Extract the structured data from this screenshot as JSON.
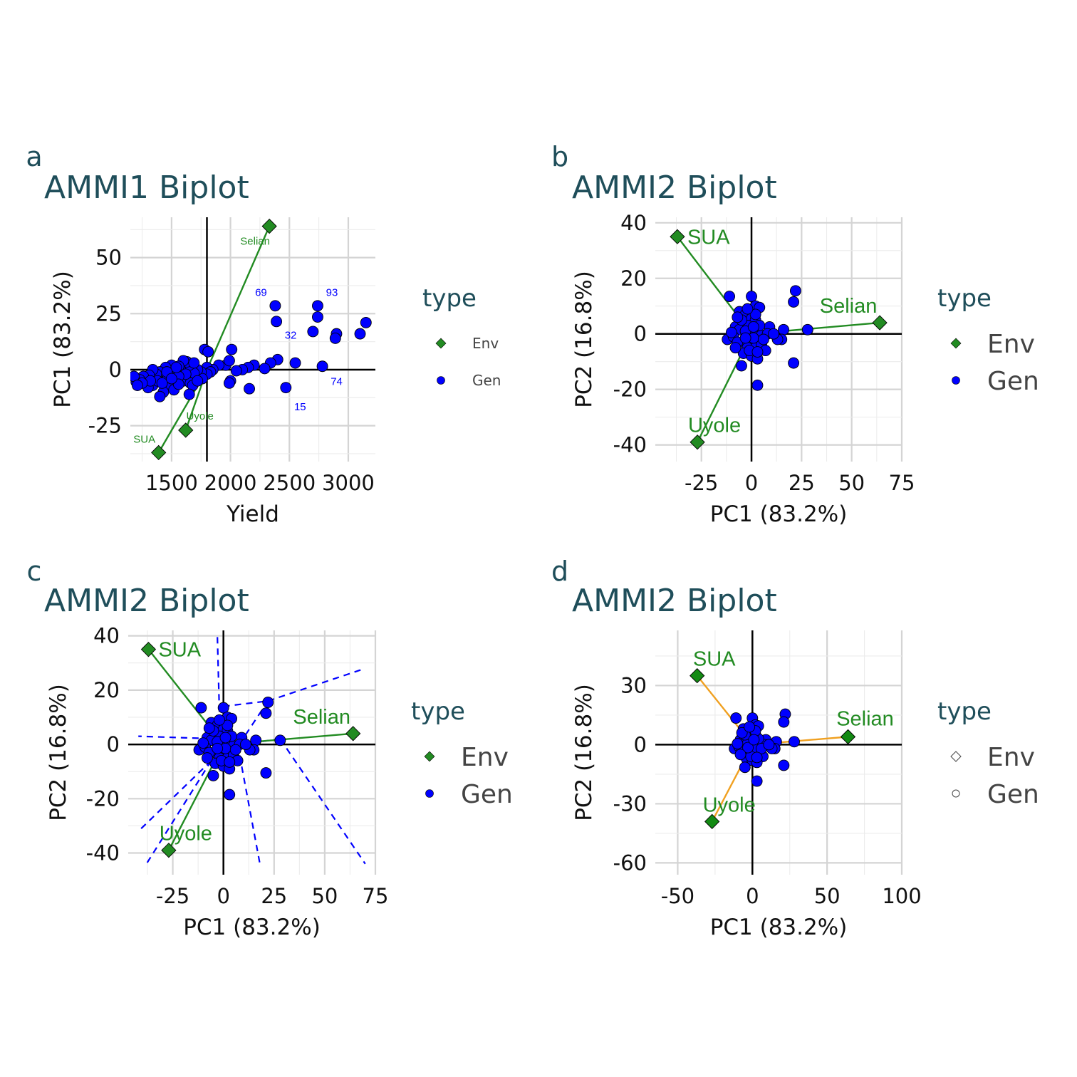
{
  "figure": {
    "title_color": "#1f4e5a",
    "env_color": "#228b22",
    "gen_color": "#0000ff",
    "orange": "#f0a020"
  },
  "chart_data": [
    {
      "panel": "a",
      "type": "scatter",
      "title": "AMMI1 Biplot",
      "xlabel": "Yield",
      "ylabel": "PC1 (83.2%)",
      "xlim": [
        1150,
        3230
      ],
      "ylim": [
        -41,
        68
      ],
      "xticks": [
        1500,
        2000,
        2500,
        3000
      ],
      "yticks": [
        -25,
        0,
        25,
        50
      ],
      "grid": true,
      "legend": {
        "title": "type",
        "position": "right",
        "items": [
          "Env",
          "Gen"
        ],
        "style": "filled"
      },
      "ref_x": 1800,
      "ref_y": 0,
      "env": [
        {
          "label": "Selian",
          "x": 2330,
          "y": 64
        },
        {
          "label": "Uyole",
          "x": 1620,
          "y": -27
        },
        {
          "label": "SUA",
          "x": 1390,
          "y": -37
        }
      ],
      "env_line_color": "green",
      "labeled_genotypes": [
        {
          "label": "69",
          "x": 2380,
          "y": 28.5
        },
        {
          "label": "93",
          "x": 2740,
          "y": 28.5
        },
        {
          "label": "32",
          "x": 2390,
          "y": 21.5
        },
        {
          "label": "74",
          "x": 2780,
          "y": 1.5
        },
        {
          "label": "15",
          "x": 2470,
          "y": -8
        }
      ],
      "genotypes": [
        [
          2740,
          23.5
        ],
        [
          2700,
          17
        ],
        [
          2900,
          16
        ],
        [
          2890,
          14
        ],
        [
          3100,
          16
        ],
        [
          3150,
          21
        ],
        [
          2550,
          3
        ],
        [
          2400,
          4.5
        ],
        [
          2340,
          3
        ],
        [
          2290,
          0.5
        ],
        [
          2200,
          2
        ],
        [
          2150,
          1
        ],
        [
          2100,
          0
        ],
        [
          2160,
          -8.5
        ],
        [
          2010,
          9
        ],
        [
          2050,
          -0.5
        ],
        [
          1960,
          2
        ],
        [
          1990,
          4
        ],
        [
          2000,
          -5
        ],
        [
          1990,
          -6
        ],
        [
          1900,
          2
        ],
        [
          1850,
          0
        ],
        [
          1800,
          1
        ],
        [
          1830,
          -1
        ],
        [
          1800,
          -2
        ],
        [
          1780,
          9
        ],
        [
          1810,
          8
        ],
        [
          1750,
          -1
        ],
        [
          1760,
          -4
        ],
        [
          1720,
          0
        ],
        [
          1690,
          -1.5
        ],
        [
          1650,
          2
        ],
        [
          1630,
          3.5
        ],
        [
          1600,
          4
        ],
        [
          1580,
          -0.5
        ],
        [
          1560,
          1.5
        ],
        [
          1530,
          -1
        ],
        [
          1500,
          2
        ],
        [
          1470,
          -0.5
        ],
        [
          1450,
          1
        ],
        [
          1420,
          -3
        ],
        [
          1400,
          -1
        ],
        [
          1370,
          -2
        ],
        [
          1340,
          0
        ],
        [
          1310,
          -2.5
        ],
        [
          1290,
          -5
        ],
        [
          1260,
          -3
        ],
        [
          1230,
          -4.5
        ],
        [
          1200,
          -5.5
        ],
        [
          1180,
          -3
        ],
        [
          1570,
          -4
        ],
        [
          1520,
          -6
        ],
        [
          1480,
          -7
        ],
        [
          1430,
          -10
        ],
        [
          1400,
          -12
        ],
        [
          1520,
          -9
        ],
        [
          1600,
          -5
        ],
        [
          1660,
          -6
        ],
        [
          1680,
          -7
        ],
        [
          1650,
          -11
        ],
        [
          1620,
          -2
        ],
        [
          1560,
          -3
        ],
        [
          1340,
          -7
        ],
        [
          1300,
          -8
        ],
        [
          1470,
          -3.5
        ],
        [
          1540,
          1
        ],
        [
          1690,
          3
        ],
        [
          1720,
          -5
        ],
        [
          1560,
          -6.5
        ],
        [
          1460,
          -1
        ],
        [
          1380,
          -5
        ],
        [
          1320,
          -5
        ],
        [
          1250,
          -6
        ],
        [
          1210,
          -7
        ],
        [
          1420,
          -6
        ],
        [
          1500,
          -4
        ]
      ]
    },
    {
      "panel": "b",
      "type": "scatter",
      "title": "AMMI2 Biplot",
      "xlabel": "PC1 (83.2%)",
      "ylabel": "PC2 (16.8%)",
      "xlim": [
        -48,
        75
      ],
      "ylim": [
        -46,
        42
      ],
      "xticks": [
        -25,
        0,
        25,
        50,
        75
      ],
      "yticks": [
        -40,
        -20,
        0,
        20,
        40
      ],
      "grid": true,
      "legend": {
        "title": "type",
        "position": "right",
        "items": [
          "Env",
          "Gen"
        ],
        "style": "filled"
      },
      "env": [
        {
          "label": "SUA",
          "x": -37,
          "y": 35
        },
        {
          "label": "Selian",
          "x": 64,
          "y": 4
        },
        {
          "label": "Uyole",
          "x": -27,
          "y": -39
        }
      ],
      "env_line_color": "green",
      "genotypes": [
        [
          -11,
          13.5
        ],
        [
          0,
          13.5
        ],
        [
          22,
          15.5
        ],
        [
          21,
          11.5
        ],
        [
          2,
          10
        ],
        [
          4,
          9.5
        ],
        [
          -6,
          8
        ],
        [
          -3,
          7
        ],
        [
          0,
          5.5
        ],
        [
          2,
          5
        ],
        [
          -2,
          3
        ],
        [
          -8,
          2.5
        ],
        [
          9,
          2.5
        ],
        [
          -6,
          1.5
        ],
        [
          -1,
          0.5
        ],
        [
          3,
          1
        ],
        [
          5,
          -0.5
        ],
        [
          8,
          0
        ],
        [
          -12,
          -2
        ],
        [
          16,
          1.5
        ],
        [
          15,
          -2
        ],
        [
          13,
          -2
        ],
        [
          28,
          1.5
        ],
        [
          -4,
          -3
        ],
        [
          1,
          -3
        ],
        [
          -2,
          -5
        ],
        [
          2,
          -5
        ],
        [
          5,
          -4
        ],
        [
          7,
          -6
        ],
        [
          -4,
          -7
        ],
        [
          0,
          -8
        ],
        [
          3,
          -9
        ],
        [
          -5,
          -11.5
        ],
        [
          21,
          -10.5
        ],
        [
          3,
          -18.5
        ],
        [
          -9,
          -1
        ],
        [
          -7,
          -3
        ],
        [
          -3,
          1
        ],
        [
          1,
          -1.5
        ],
        [
          4,
          3
        ],
        [
          -1,
          -6
        ],
        [
          6,
          -2
        ],
        [
          -10,
          0.5
        ],
        [
          -5,
          5
        ],
        [
          2,
          7
        ],
        [
          -3,
          -1.5
        ],
        [
          3,
          -6.5
        ],
        [
          -7,
          6
        ],
        [
          1,
          2.5
        ],
        [
          -2,
          9
        ],
        [
          11,
          0
        ],
        [
          -8,
          -5
        ]
      ]
    },
    {
      "panel": "c",
      "type": "scatter",
      "title": "AMMI2 Biplot",
      "xlabel": "PC1 (83.2%)",
      "ylabel": "PC2 (16.8%)",
      "xlim": [
        -47,
        75
      ],
      "ylim": [
        -48,
        42
      ],
      "xticks": [
        -25,
        0,
        25,
        50,
        75
      ],
      "yticks": [
        -40,
        -20,
        0,
        20,
        40
      ],
      "grid": true,
      "legend": {
        "title": "type",
        "position": "right",
        "items": [
          "Env",
          "Gen"
        ],
        "style": "filled"
      },
      "env": [
        {
          "label": "SUA",
          "x": -37,
          "y": 35
        },
        {
          "label": "Selian",
          "x": 64,
          "y": 4
        },
        {
          "label": "Uyole",
          "x": -27,
          "y": -39
        }
      ],
      "env_line_color": "green",
      "dashed_lines_color": "blue",
      "genotypes": [
        [
          -11,
          13.5
        ],
        [
          0,
          13.5
        ],
        [
          22,
          15.5
        ],
        [
          21,
          11.5
        ],
        [
          2,
          10
        ],
        [
          4,
          9.5
        ],
        [
          -6,
          8
        ],
        [
          -3,
          7
        ],
        [
          0,
          5.5
        ],
        [
          2,
          5
        ],
        [
          -2,
          3
        ],
        [
          -8,
          2.5
        ],
        [
          9,
          2.5
        ],
        [
          -6,
          1.5
        ],
        [
          -1,
          0.5
        ],
        [
          3,
          1
        ],
        [
          5,
          -0.5
        ],
        [
          8,
          0
        ],
        [
          -12,
          -2
        ],
        [
          16,
          1.5
        ],
        [
          15,
          -2
        ],
        [
          13,
          -2
        ],
        [
          28,
          1.5
        ],
        [
          -4,
          -3
        ],
        [
          1,
          -3
        ],
        [
          -2,
          -5
        ],
        [
          2,
          -5
        ],
        [
          5,
          -4
        ],
        [
          7,
          -6
        ],
        [
          -4,
          -7
        ],
        [
          0,
          -8
        ],
        [
          3,
          -9
        ],
        [
          -5,
          -11.5
        ],
        [
          21,
          -10.5
        ],
        [
          3,
          -18.5
        ],
        [
          -9,
          -1
        ],
        [
          -7,
          -3
        ],
        [
          -3,
          1
        ],
        [
          1,
          -1.5
        ],
        [
          4,
          3
        ],
        [
          -1,
          -6
        ],
        [
          6,
          -2
        ],
        [
          -10,
          0.5
        ],
        [
          -5,
          5
        ],
        [
          2,
          7
        ],
        [
          -3,
          -1.5
        ],
        [
          3,
          -6.5
        ],
        [
          -7,
          6
        ],
        [
          1,
          2.5
        ],
        [
          -2,
          9
        ],
        [
          11,
          0
        ],
        [
          -8,
          -5
        ]
      ],
      "sector_lines": [
        [
          [
            -2,
            12
          ],
          [
            -3,
            40
          ]
        ],
        [
          [
            0,
            14
          ],
          [
            22,
            16
          ]
        ],
        [
          [
            22,
            16
          ],
          [
            70,
            28
          ]
        ],
        [
          [
            22,
            16
          ],
          [
            6,
            -2
          ]
        ],
        [
          [
            28,
            2
          ],
          [
            8,
            0
          ]
        ],
        [
          [
            28,
            2
          ],
          [
            70,
            -44
          ]
        ],
        [
          [
            8,
            -4
          ],
          [
            18,
            -44
          ]
        ],
        [
          [
            -1,
            2
          ],
          [
            -42,
            3
          ]
        ],
        [
          [
            -6,
            -6
          ],
          [
            -42,
            -32
          ]
        ],
        [
          [
            -6,
            -6
          ],
          [
            -38,
            -44
          ]
        ]
      ]
    },
    {
      "panel": "d",
      "type": "scatter",
      "title": "AMMI2 Biplot",
      "xlabel": "PC1 (83.2%)",
      "ylabel": "PC2 (16.8%)",
      "xlim": [
        -65,
        100
      ],
      "ylim": [
        -66,
        58
      ],
      "xticks": [
        -50,
        0,
        50,
        100
      ],
      "yticks": [
        -60,
        -30,
        0,
        30
      ],
      "grid": true,
      "legend": {
        "title": "type",
        "position": "right",
        "items": [
          "Env",
          "Gen"
        ],
        "style": "hollow"
      },
      "env": [
        {
          "label": "SUA",
          "x": -37,
          "y": 35
        },
        {
          "label": "Selian",
          "x": 64,
          "y": 4
        },
        {
          "label": "Uyole",
          "x": -27,
          "y": -39
        }
      ],
      "env_line_color": "orange",
      "genotypes": [
        [
          -11,
          13.5
        ],
        [
          0,
          13.5
        ],
        [
          22,
          15.5
        ],
        [
          21,
          11.5
        ],
        [
          2,
          10
        ],
        [
          4,
          9.5
        ],
        [
          -6,
          8
        ],
        [
          -3,
          7
        ],
        [
          0,
          5.5
        ],
        [
          2,
          5
        ],
        [
          -2,
          3
        ],
        [
          -8,
          2.5
        ],
        [
          9,
          2.5
        ],
        [
          -6,
          1.5
        ],
        [
          -1,
          0.5
        ],
        [
          3,
          1
        ],
        [
          5,
          -0.5
        ],
        [
          8,
          0
        ],
        [
          -12,
          -2
        ],
        [
          16,
          1.5
        ],
        [
          15,
          -2
        ],
        [
          13,
          -2
        ],
        [
          28,
          1.5
        ],
        [
          -4,
          -3
        ],
        [
          1,
          -3
        ],
        [
          -2,
          -5
        ],
        [
          2,
          -5
        ],
        [
          5,
          -4
        ],
        [
          7,
          -6
        ],
        [
          -4,
          -7
        ],
        [
          0,
          -8
        ],
        [
          3,
          -9
        ],
        [
          -5,
          -11.5
        ],
        [
          21,
          -10.5
        ],
        [
          3,
          -18.5
        ],
        [
          -9,
          -1
        ],
        [
          -7,
          -3
        ],
        [
          -3,
          1
        ],
        [
          1,
          -1.5
        ],
        [
          4,
          3
        ],
        [
          -1,
          -6
        ],
        [
          6,
          -2
        ],
        [
          -10,
          0.5
        ],
        [
          -5,
          5
        ],
        [
          2,
          7
        ],
        [
          -3,
          -1.5
        ],
        [
          3,
          -6.5
        ],
        [
          -7,
          6
        ],
        [
          1,
          2.5
        ],
        [
          -2,
          9
        ],
        [
          11,
          0
        ],
        [
          -8,
          -5
        ]
      ]
    }
  ]
}
